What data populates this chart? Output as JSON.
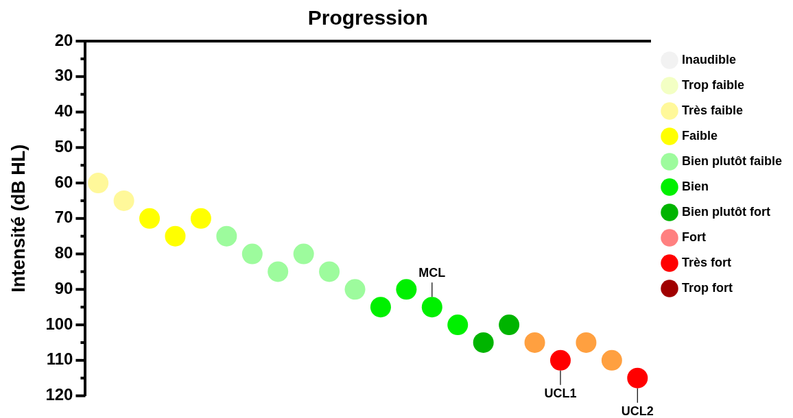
{
  "chart_data": {
    "type": "scatter",
    "title": "Progression",
    "ylabel": "Intensité (dB HL)",
    "categories": [
      null,
      null,
      null,
      null,
      null,
      null,
      null,
      null,
      null,
      null,
      null,
      null,
      null,
      null,
      null,
      null,
      null,
      null,
      null,
      null,
      null,
      null
    ],
    "ylim": [
      120,
      20
    ],
    "yticks": [
      20,
      {
        "value": 25,
        "label": null
      },
      30,
      {
        "value": 35,
        "label": null
      },
      40,
      {
        "value": 45,
        "label": null
      },
      50,
      {
        "value": 55,
        "label": null
      },
      60,
      {
        "value": 65,
        "label": null
      },
      70,
      {
        "value": 75,
        "label": null
      },
      80,
      {
        "value": 85,
        "label": null
      },
      90,
      {
        "value": 95,
        "label": null
      },
      100,
      {
        "value": 105,
        "label": null
      },
      110,
      {
        "value": 115,
        "label": null
      },
      120
    ],
    "tick_labels": "y",
    "grid": false,
    "legend": "right",
    "marker": "circle",
    "series": [
      {
        "name": "Inaudible",
        "color": "#f2f2f2",
        "values": [
          null,
          null,
          null,
          null,
          null,
          null,
          null,
          null,
          null,
          null,
          null,
          null,
          null,
          null,
          null,
          null,
          null,
          null,
          null,
          null,
          null,
          null
        ]
      },
      {
        "name": "Trop faible",
        "color": "#f3ffc4",
        "values": [
          null,
          null,
          null,
          null,
          null,
          null,
          null,
          null,
          null,
          null,
          null,
          null,
          null,
          null,
          null,
          null,
          null,
          null,
          null,
          null,
          null,
          null
        ]
      },
      {
        "name": "Très faible",
        "color": "#fff89a",
        "values": [
          60,
          65,
          null,
          null,
          null,
          null,
          null,
          null,
          null,
          null,
          null,
          null,
          null,
          null,
          null,
          null,
          null,
          null,
          null,
          null,
          null,
          null
        ]
      },
      {
        "name": "Faible",
        "color": "#ffff00",
        "values": [
          null,
          null,
          70,
          75,
          70,
          null,
          null,
          null,
          null,
          null,
          null,
          null,
          null,
          null,
          null,
          null,
          null,
          null,
          null,
          null,
          null,
          null
        ]
      },
      {
        "name": "Bien plutôt faible",
        "color": "#9dfb9d",
        "values": [
          null,
          null,
          null,
          null,
          null,
          75,
          80,
          85,
          80,
          85,
          90,
          null,
          null,
          null,
          null,
          null,
          null,
          null,
          null,
          null,
          null,
          null
        ]
      },
      {
        "name": "Bien",
        "color": "#00f000",
        "values": [
          null,
          null,
          null,
          null,
          null,
          null,
          null,
          null,
          null,
          null,
          null,
          95,
          90,
          95,
          100,
          null,
          null,
          null,
          null,
          null,
          null,
          null
        ],
        "value_labels": [
          null,
          null,
          null,
          null,
          null,
          null,
          null,
          null,
          null,
          null,
          null,
          null,
          null,
          "MCL",
          null,
          null,
          null,
          null,
          null,
          null,
          null,
          null
        ]
      },
      {
        "name": "Bien plutôt fort",
        "color": "#00b400",
        "values": [
          null,
          null,
          null,
          null,
          null,
          null,
          null,
          null,
          null,
          null,
          null,
          null,
          null,
          null,
          null,
          105,
          100,
          null,
          null,
          null,
          null,
          null
        ]
      },
      {
        "name": "Fort",
        "color": "#ff8080",
        "values": [
          null,
          null,
          null,
          null,
          null,
          null,
          null,
          null,
          null,
          null,
          null,
          null,
          null,
          null,
          null,
          null,
          null,
          null,
          null,
          null,
          null,
          null
        ]
      },
      {
        "color": "#ffa040",
        "values": [
          null,
          null,
          null,
          null,
          null,
          null,
          null,
          null,
          null,
          null,
          null,
          null,
          null,
          null,
          null,
          null,
          null,
          105,
          null,
          105,
          110,
          null
        ]
      },
      {
        "name": "Très fort",
        "color": "#ff0000",
        "values": [
          null,
          null,
          null,
          null,
          null,
          null,
          null,
          null,
          null,
          null,
          null,
          null,
          null,
          null,
          null,
          null,
          null,
          null,
          110,
          null,
          null,
          115
        ],
        "value_labels": [
          null,
          null,
          null,
          null,
          null,
          null,
          null,
          null,
          null,
          null,
          null,
          null,
          null,
          null,
          null,
          null,
          null,
          null,
          "UCL1",
          null,
          null,
          "UCL2"
        ]
      },
      {
        "name": "Trop fort",
        "color": "#a00000",
        "values": [
          null,
          null,
          null,
          null,
          null,
          null,
          null,
          null,
          null,
          null,
          null,
          null,
          null,
          null,
          null,
          null,
          null,
          null,
          null,
          null,
          null,
          null
        ]
      }
    ]
  }
}
